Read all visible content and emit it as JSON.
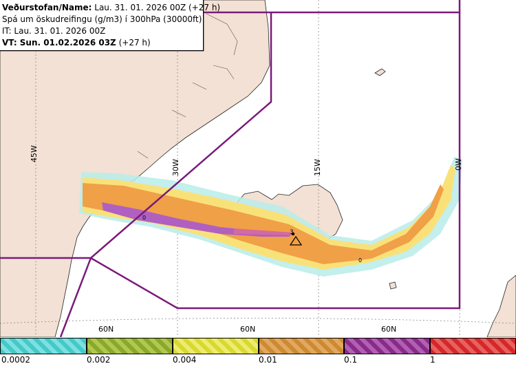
{
  "info": {
    "line1_label": "Veðurstofan/Name:",
    "line1_value": "Lau. 31. 01. 2026 00Z (+27 h)",
    "line2": "Spá um öskudreifingu (g/m3) í 300hPa (30000ft)",
    "line3": "IT: Lau. 31. 01. 2026 00Z",
    "line4_label": "VT: Sun. 01.02.2026 03Z",
    "line4_value": "(+27 h)"
  },
  "grid_labels": {
    "lon": [
      "45W",
      "30W",
      "15W",
      "0W"
    ],
    "lat": [
      "60N",
      "60N",
      "60N"
    ]
  },
  "markers": {
    "volcano_label": "3",
    "contour_labels": [
      "0",
      "0"
    ]
  },
  "legend": {
    "labels": [
      "0.0002",
      "0.002",
      "0.004",
      "0.01",
      "0.1",
      "1"
    ],
    "colors": [
      "#45c8c8",
      "#8aa82a",
      "#d8d830",
      "#cd8a30",
      "#8a2a8a",
      "#d42828"
    ]
  },
  "colors": {
    "land": "#f2e1d4",
    "sea": "#ffffff",
    "boundary": "#7a1a7a",
    "ash_low": "#f7c760",
    "ash_mid": "#f0a046",
    "ash_high": "#b060c0"
  }
}
